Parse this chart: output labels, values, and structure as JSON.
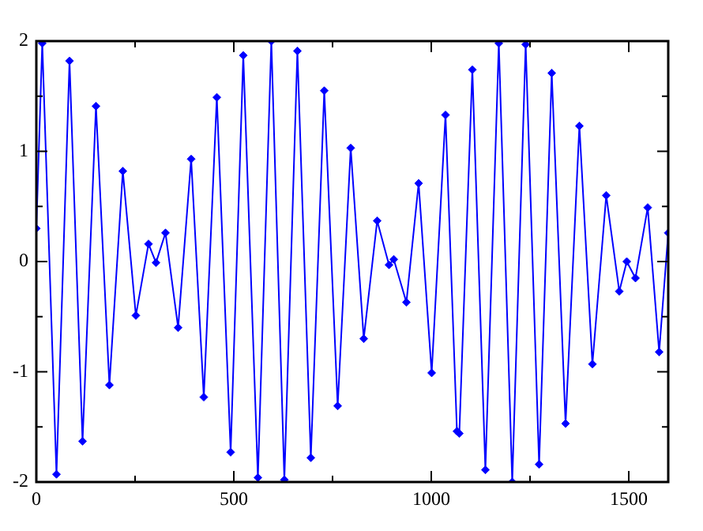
{
  "chart_data": {
    "type": "line",
    "marker": "diamond",
    "line_style": "solid",
    "legend": false,
    "grid": false,
    "xlim": [
      0,
      1600
    ],
    "ylim": [
      -2,
      2
    ],
    "xticks": [
      0,
      {
        "value": 250,
        "label": null
      },
      500,
      {
        "value": 750,
        "label": null
      },
      1000,
      {
        "value": 1250,
        "label": null
      },
      1500
    ],
    "yticks": [
      -2,
      {
        "value": -1.5,
        "label": null
      },
      -1,
      {
        "value": -0.5,
        "label": null
      },
      0,
      {
        "value": 0.5,
        "label": null
      },
      1,
      {
        "value": 1.5,
        "label": null
      },
      2
    ],
    "series": [
      {
        "color": "#0000ff",
        "x": [
          0,
          15,
          51,
          84,
          117,
          151,
          185,
          219,
          252,
          284,
          303,
          327,
          359,
          392,
          424,
          457,
          492,
          524,
          561,
          595,
          628,
          661,
          695,
          729,
          763,
          796,
          829,
          863,
          893,
          905,
          937,
          968,
          1001,
          1036,
          1065,
          1071,
          1104,
          1137,
          1171,
          1205,
          1239,
          1273,
          1305,
          1340,
          1375,
          1408,
          1443,
          1476,
          1495,
          1517,
          1548,
          1577,
          1600
        ],
        "values": [
          0.3,
          1.98,
          -1.93,
          1.82,
          -1.63,
          1.41,
          -1.12,
          0.82,
          -0.49,
          0.16,
          -0.01,
          0.26,
          -0.6,
          0.93,
          -1.23,
          1.49,
          -1.73,
          1.87,
          -1.96,
          2.0,
          -1.98,
          1.91,
          -1.78,
          1.55,
          -1.31,
          1.03,
          -0.7,
          0.37,
          -0.03,
          0.02,
          -0.37,
          0.71,
          -1.01,
          1.33,
          -1.54,
          -1.56,
          1.74,
          -1.89,
          1.98,
          -2.0,
          1.97,
          -1.84,
          1.71,
          -1.47,
          1.23,
          -0.93,
          0.6,
          -0.27,
          0.0,
          -0.15,
          0.49,
          -0.82,
          0.26
        ]
      }
    ]
  }
}
